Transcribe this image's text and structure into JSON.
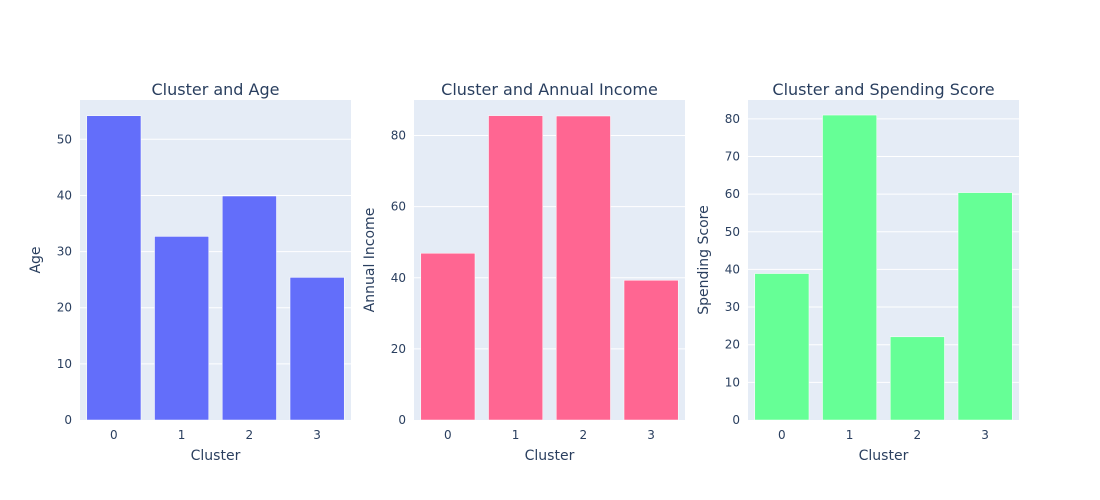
{
  "chart_data": [
    {
      "type": "bar",
      "title": "Cluster and Age",
      "xlabel": "Cluster",
      "ylabel": "Age",
      "categories": [
        "0",
        "1",
        "2",
        "3"
      ],
      "values": [
        54.2,
        32.7,
        39.9,
        25.4
      ],
      "yticks": [
        0,
        10,
        20,
        30,
        40,
        50
      ],
      "ytick_labels": [
        "0",
        "10",
        "20",
        "30",
        "40",
        "50"
      ],
      "ylim": [
        0,
        57
      ],
      "color": "#636efa",
      "grid": true
    },
    {
      "type": "bar",
      "title": "Cluster and Annual Income",
      "xlabel": "Cluster",
      "ylabel": "Annual Income",
      "categories": [
        "0",
        "1",
        "2",
        "3"
      ],
      "values": [
        46.9,
        85.6,
        85.5,
        39.3
      ],
      "yticks": [
        0,
        20,
        40,
        60,
        80
      ],
      "ytick_labels": [
        "0",
        "20",
        "40",
        "60",
        "80"
      ],
      "ylim": [
        0,
        90
      ],
      "color": "#ff6692",
      "grid": true
    },
    {
      "type": "bar",
      "title": "Cluster and Spending Score",
      "xlabel": "Cluster",
      "ylabel": "Spending Score",
      "categories": [
        "0",
        "1",
        "2",
        "3"
      ],
      "values": [
        38.9,
        81.0,
        22.1,
        60.4
      ],
      "yticks": [
        0,
        10,
        20,
        30,
        40,
        50,
        60,
        70,
        80
      ],
      "ytick_labels": [
        "0",
        "10",
        "20",
        "30",
        "40",
        "50",
        "60",
        "70",
        "80"
      ],
      "ylim": [
        0,
        85
      ],
      "color": "#66ff96",
      "grid": true
    }
  ],
  "theme": {
    "plot_bg": "#e5ecf6",
    "grid_color": "#ffffff",
    "text_color": "#2a3f5f"
  }
}
